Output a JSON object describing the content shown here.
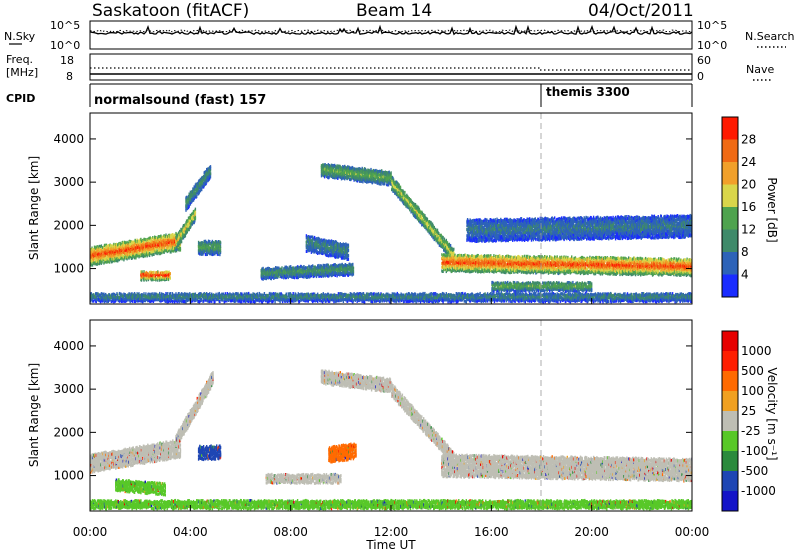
{
  "header": {
    "station": "Saskatoon (fitACF)",
    "beam": "Beam 14",
    "date": "04/Oct/2011"
  },
  "strip_panels": {
    "nsky": {
      "label": "N.Sky",
      "top_tick": "10^5",
      "bottom_tick": "10^0",
      "right_label": "N.Search",
      "right_top_tick": "10^5",
      "right_bottom_tick": "10^0"
    },
    "freq": {
      "label_line1": "Freq.",
      "label_line2": "[MHz]",
      "top_tick": "18",
      "bottom_tick": "8",
      "right_label": "Nave",
      "right_top_tick": "60",
      "right_bottom_tick": "0"
    },
    "cpid": {
      "label": "CPID",
      "modes": [
        {
          "name": "normalsound (fast) 157",
          "start_hour": 0
        },
        {
          "name": "themis 3300",
          "start_hour": 18
        }
      ]
    }
  },
  "chart_data": [
    {
      "type": "heatmap",
      "name": "power",
      "x_range_hours": [
        0,
        24
      ],
      "ylabel": "Slant Range [km]",
      "y_ticks": [
        1000,
        2000,
        3000,
        4000
      ],
      "ylim": [
        180,
        4600
      ],
      "colorbar": {
        "label": "Power [dB]",
        "ticks": [
          4,
          8,
          12,
          16,
          20,
          24,
          28
        ],
        "range": [
          0,
          32
        ],
        "colors": [
          "#1a2cff",
          "#2d63b8",
          "#3f8a6a",
          "#4fa34e",
          "#d9d64a",
          "#f1a02a",
          "#f06a14",
          "#ff1a00"
        ]
      },
      "bands": [
        {
          "t0": 0.0,
          "t1": 3.6,
          "center_start": 1300,
          "center_end": 1650,
          "width": 400,
          "level": 0.85
        },
        {
          "t0": 2.0,
          "t1": 3.2,
          "center_start": 850,
          "center_end": 850,
          "width": 200,
          "level": 0.9
        },
        {
          "t0": 3.4,
          "t1": 4.2,
          "center_start": 1600,
          "center_end": 2300,
          "width": 300,
          "level": 0.6
        },
        {
          "t0": 3.8,
          "t1": 4.8,
          "center_start": 2500,
          "center_end": 3300,
          "width": 300,
          "level": 0.35
        },
        {
          "t0": 4.3,
          "t1": 5.2,
          "center_start": 1500,
          "center_end": 1500,
          "width": 300,
          "level": 0.4
        },
        {
          "t0": 6.8,
          "t1": 10.5,
          "center_start": 900,
          "center_end": 1000,
          "width": 250,
          "level": 0.35
        },
        {
          "t0": 8.6,
          "t1": 10.3,
          "center_start": 1600,
          "center_end": 1400,
          "width": 350,
          "level": 0.3
        },
        {
          "t0": 9.2,
          "t1": 12.0,
          "center_start": 3300,
          "center_end": 3100,
          "width": 300,
          "level": 0.45
        },
        {
          "t0": 12.0,
          "t1": 14.5,
          "center_start": 3000,
          "center_end": 1300,
          "width": 300,
          "level": 0.55
        },
        {
          "t0": 14.0,
          "t1": 24.0,
          "center_start": 1150,
          "center_end": 1050,
          "width": 380,
          "level": 0.85
        },
        {
          "t0": 15.0,
          "t1": 24.0,
          "center_start": 1900,
          "center_end": 2000,
          "width": 500,
          "level": 0.25
        },
        {
          "t0": 16.0,
          "t1": 20.0,
          "center_start": 600,
          "center_end": 600,
          "width": 200,
          "level": 0.45
        },
        {
          "t0": 0.0,
          "t1": 24.0,
          "center_start": 350,
          "center_end": 350,
          "width": 180,
          "level": 0.3
        }
      ]
    },
    {
      "type": "heatmap",
      "name": "velocity",
      "x_range_hours": [
        0,
        24
      ],
      "xlabel": "Time UT",
      "ylabel": "Slant Range [km]",
      "x_ticks": [
        "00:00",
        "04:00",
        "08:00",
        "12:00",
        "16:00",
        "20:00",
        "00:00"
      ],
      "y_ticks": [
        1000,
        2000,
        3000,
        4000
      ],
      "ylim": [
        180,
        4600
      ],
      "colorbar": {
        "label": "Velocity [m s⁻¹]",
        "ticks": [
          1000,
          500,
          100,
          25,
          -25,
          -100,
          -500,
          -1000
        ],
        "colors": [
          "#1414c8",
          "#1e46b4",
          "#2a8a3c",
          "#58c828",
          "#bebeb4",
          "#f0a020",
          "#ff6a00",
          "#ff1e00",
          "#e60000"
        ]
      },
      "bands": [
        {
          "t0": 0.0,
          "t1": 3.6,
          "center_start": 1300,
          "center_end": 1650,
          "width": 400,
          "color_index": 4
        },
        {
          "t0": 1.0,
          "t1": 3.0,
          "center_start": 800,
          "center_end": 700,
          "width": 250,
          "color_index": 3
        },
        {
          "t0": 4.3,
          "t1": 5.2,
          "center_start": 1550,
          "center_end": 1550,
          "width": 300,
          "color_index": 1
        },
        {
          "t0": 3.4,
          "t1": 4.9,
          "center_start": 1800,
          "center_end": 3300,
          "width": 300,
          "color_index": 4
        },
        {
          "t0": 9.5,
          "t1": 10.6,
          "center_start": 1500,
          "center_end": 1600,
          "width": 350,
          "color_index": 6
        },
        {
          "t0": 7.0,
          "t1": 10.0,
          "center_start": 950,
          "center_end": 950,
          "width": 200,
          "color_index": 4
        },
        {
          "t0": 9.2,
          "t1": 12.0,
          "center_start": 3300,
          "center_end": 3100,
          "width": 300,
          "color_index": 4
        },
        {
          "t0": 12.0,
          "t1": 14.5,
          "center_start": 3000,
          "center_end": 1400,
          "width": 300,
          "color_index": 4
        },
        {
          "t0": 14.0,
          "t1": 24.0,
          "center_start": 1250,
          "center_end": 1150,
          "width": 500,
          "color_index": 4
        },
        {
          "t0": 0.0,
          "t1": 24.0,
          "center_start": 350,
          "center_end": 350,
          "width": 180,
          "color_index": 3
        }
      ]
    }
  ]
}
